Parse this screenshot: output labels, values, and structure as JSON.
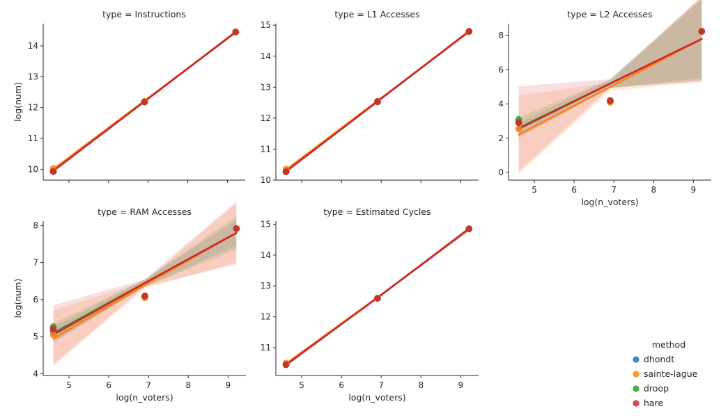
{
  "chart_data": [
    {
      "type": "scatter",
      "title": "type = Instructions",
      "xlabel": "",
      "ylabel": "log(num)",
      "xlim": [
        4.35,
        9.45
      ],
      "ylim": [
        9.65,
        14.72
      ],
      "xticks": [
        5,
        6,
        7,
        8,
        9
      ],
      "show_xtick_labels": false,
      "yticks": [
        10,
        11,
        12,
        13,
        14
      ],
      "x": [
        4.605,
        6.908,
        9.21
      ],
      "series": [
        {
          "name": "dhondt",
          "values": [
            9.93,
            12.18,
            14.45
          ],
          "fit": [
            9.95,
            12.2,
            14.45
          ],
          "band": [
            0.05,
            0.03,
            0.05
          ]
        },
        {
          "name": "sainte-lague",
          "values": [
            10.03,
            12.2,
            14.45
          ],
          "fit": [
            10.0,
            12.22,
            14.44
          ],
          "band": [
            0.06,
            0.03,
            0.06
          ]
        },
        {
          "name": "droop",
          "values": [
            9.93,
            12.18,
            14.45
          ],
          "fit": [
            9.95,
            12.2,
            14.45
          ],
          "band": [
            0.05,
            0.03,
            0.05
          ]
        },
        {
          "name": "hare",
          "values": [
            9.93,
            12.18,
            14.45
          ],
          "fit": [
            9.95,
            12.2,
            14.45
          ],
          "band": [
            0.05,
            0.03,
            0.05
          ]
        }
      ]
    },
    {
      "type": "scatter",
      "title": "type = L1 Accesses",
      "xlabel": "",
      "ylabel": "",
      "xlim": [
        4.35,
        9.45
      ],
      "ylim": [
        10.0,
        15.05
      ],
      "xticks": [
        5,
        6,
        7,
        8,
        9
      ],
      "show_xtick_labels": false,
      "yticks": [
        10,
        11,
        12,
        13,
        14,
        15
      ],
      "x": [
        4.605,
        6.908,
        9.21
      ],
      "series": [
        {
          "name": "dhondt",
          "values": [
            10.27,
            12.53,
            14.8
          ],
          "fit": [
            10.28,
            12.54,
            14.8
          ],
          "band": [
            0.05,
            0.03,
            0.05
          ]
        },
        {
          "name": "sainte-lague",
          "values": [
            10.35,
            12.55,
            14.8
          ],
          "fit": [
            10.33,
            12.56,
            14.79
          ],
          "band": [
            0.06,
            0.03,
            0.06
          ]
        },
        {
          "name": "droop",
          "values": [
            10.27,
            12.53,
            14.8
          ],
          "fit": [
            10.28,
            12.54,
            14.8
          ],
          "band": [
            0.05,
            0.03,
            0.05
          ]
        },
        {
          "name": "hare",
          "values": [
            10.27,
            12.53,
            14.8
          ],
          "fit": [
            10.28,
            12.54,
            14.8
          ],
          "band": [
            0.05,
            0.03,
            0.05
          ]
        }
      ]
    },
    {
      "type": "scatter",
      "title": "type = L2 Accesses",
      "xlabel": "log(n_voters)",
      "ylabel": "",
      "xlim": [
        4.35,
        9.45
      ],
      "ylim": [
        -0.45,
        8.7
      ],
      "xticks": [
        5,
        6,
        7,
        8,
        9
      ],
      "show_xtick_labels": true,
      "yticks": [
        0,
        2,
        4,
        6,
        8
      ],
      "x": [
        4.605,
        6.908,
        9.21
      ],
      "series": [
        {
          "name": "dhondt",
          "values": [
            2.95,
            4.15,
            8.25
          ],
          "fit": [
            2.55,
            5.2,
            7.8
          ],
          "band": [
            0.35,
            0.25,
            2.4
          ]
        },
        {
          "name": "sainte-lague",
          "values": [
            2.55,
            4.1,
            8.25
          ],
          "fit": [
            2.2,
            5.0,
            7.8
          ],
          "band": [
            2.3,
            0.25,
            2.5
          ]
        },
        {
          "name": "droop",
          "values": [
            3.1,
            4.2,
            8.25
          ],
          "fit": [
            2.6,
            5.2,
            7.8
          ],
          "band": [
            0.6,
            0.25,
            2.3
          ]
        },
        {
          "name": "hare",
          "values": [
            2.9,
            4.2,
            8.25
          ],
          "fit": [
            2.55,
            5.2,
            7.8
          ],
          "band": [
            2.5,
            0.25,
            2.5
          ]
        }
      ]
    },
    {
      "type": "scatter",
      "title": "type = RAM Accesses",
      "xlabel": "log(n_voters)",
      "ylabel": "log(num)",
      "xlim": [
        4.35,
        9.45
      ],
      "ylim": [
        3.95,
        8.12
      ],
      "xticks": [
        5,
        6,
        7,
        8,
        9
      ],
      "show_xtick_labels": true,
      "yticks": [
        4,
        5,
        6,
        7,
        8
      ],
      "x": [
        4.605,
        6.908,
        9.21
      ],
      "series": [
        {
          "name": "dhondt",
          "values": [
            5.15,
            6.08,
            7.92
          ],
          "fit": [
            5.05,
            6.45,
            7.8
          ],
          "band": [
            0.2,
            0.1,
            0.35
          ]
        },
        {
          "name": "sainte-lague",
          "values": [
            5.05,
            6.05,
            7.92
          ],
          "fit": [
            4.95,
            6.4,
            7.8
          ],
          "band": [
            0.75,
            0.1,
            0.8
          ]
        },
        {
          "name": "droop",
          "values": [
            5.27,
            6.1,
            7.92
          ],
          "fit": [
            5.1,
            6.45,
            7.8
          ],
          "band": [
            0.25,
            0.1,
            0.45
          ]
        },
        {
          "name": "hare",
          "values": [
            5.2,
            6.1,
            7.92
          ],
          "fit": [
            5.05,
            6.45,
            7.8
          ],
          "band": [
            0.8,
            0.1,
            0.85
          ]
        }
      ]
    },
    {
      "type": "scatter",
      "title": "type = Estimated Cycles",
      "xlabel": "log(n_voters)",
      "ylabel": "",
      "xlim": [
        4.35,
        9.45
      ],
      "ylim": [
        10.1,
        15.1
      ],
      "xticks": [
        5,
        6,
        7,
        8,
        9
      ],
      "show_xtick_labels": true,
      "yticks": [
        11,
        12,
        13,
        14,
        15
      ],
      "x": [
        4.605,
        6.908,
        9.21
      ],
      "series": [
        {
          "name": "dhondt",
          "values": [
            10.45,
            12.6,
            14.85
          ],
          "fit": [
            10.45,
            12.62,
            14.85
          ],
          "band": [
            0.06,
            0.03,
            0.06
          ]
        },
        {
          "name": "sainte-lague",
          "values": [
            10.5,
            12.6,
            14.85
          ],
          "fit": [
            10.48,
            12.63,
            14.84
          ],
          "band": [
            0.07,
            0.03,
            0.07
          ]
        },
        {
          "name": "droop",
          "values": [
            10.45,
            12.6,
            14.85
          ],
          "fit": [
            10.45,
            12.62,
            14.85
          ],
          "band": [
            0.06,
            0.03,
            0.06
          ]
        },
        {
          "name": "hare",
          "values": [
            10.45,
            12.6,
            14.85
          ],
          "fit": [
            10.45,
            12.62,
            14.85
          ],
          "band": [
            0.06,
            0.03,
            0.06
          ]
        }
      ]
    }
  ],
  "legend": {
    "title": "method",
    "placement": "bottom-right",
    "items": [
      {
        "name": "dhondt",
        "color": "#1f77b4"
      },
      {
        "name": "sainte-lague",
        "color": "#ff7f0e"
      },
      {
        "name": "droop",
        "color": "#2ca02c"
      },
      {
        "name": "hare",
        "color": "#d62728"
      }
    ]
  }
}
